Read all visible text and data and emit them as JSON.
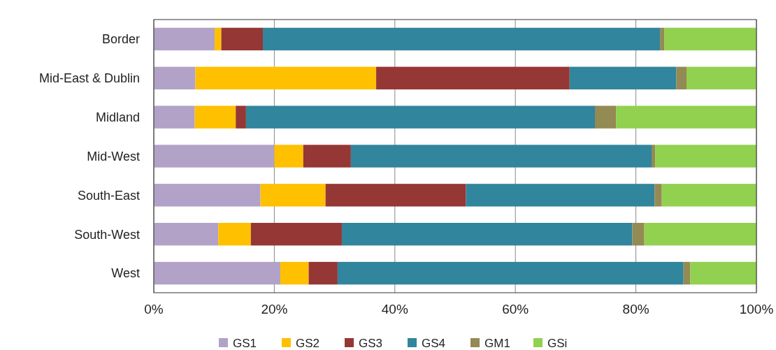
{
  "chart_data": {
    "type": "bar",
    "orientation": "horizontal",
    "stacked": true,
    "categories": [
      "Border",
      "Mid-East & Dublin",
      "Midland",
      "Mid-West",
      "South-East",
      "South-West",
      "West"
    ],
    "series": [
      {
        "name": "GS1",
        "color": "#b2a2c7",
        "values": [
          10.1,
          6.9,
          6.8,
          20.0,
          17.7,
          10.7,
          21.0
        ]
      },
      {
        "name": "GS2",
        "color": "#ffc000",
        "values": [
          1.1,
          30.0,
          6.8,
          4.8,
          10.8,
          5.4,
          4.7
        ]
      },
      {
        "name": "GS3",
        "color": "#953735",
        "values": [
          6.9,
          32.1,
          1.7,
          7.9,
          23.3,
          15.1,
          4.8
        ]
      },
      {
        "name": "GS4",
        "color": "#31859c",
        "values": [
          65.9,
          17.7,
          57.9,
          49.9,
          31.3,
          48.2,
          57.4
        ]
      },
      {
        "name": "GM1",
        "color": "#948a54",
        "values": [
          0.7,
          1.7,
          3.5,
          0.6,
          1.2,
          2.0,
          1.1
        ]
      },
      {
        "name": "GSi",
        "color": "#92d050",
        "values": [
          15.3,
          11.6,
          23.3,
          16.8,
          15.7,
          18.6,
          11.0
        ]
      }
    ],
    "xlim": [
      0,
      100
    ],
    "xticks": [
      {
        "value": 0,
        "label": "0%"
      },
      {
        "value": 20,
        "label": "20%"
      },
      {
        "value": 40,
        "label": "40%"
      },
      {
        "value": 60,
        "label": "60%"
      },
      {
        "value": 80,
        "label": "80%"
      },
      {
        "value": 100,
        "label": "100%"
      }
    ],
    "grid": "x",
    "legend": "bottom"
  }
}
